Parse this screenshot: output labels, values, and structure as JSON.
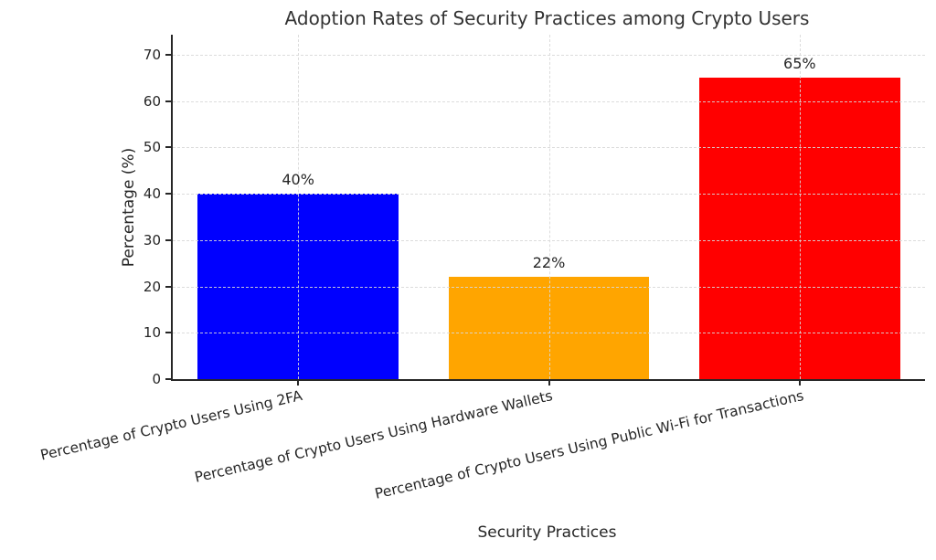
{
  "figure": {
    "background": "#ffffff"
  },
  "chart_data": {
    "type": "bar",
    "title": "Adoption Rates of Security Practices among Crypto Users",
    "xlabel": "Security Practices",
    "ylabel": "Percentage (%)",
    "categories": [
      "Percentage of Crypto Users Using 2FA",
      "Percentage of Crypto Users Using Hardware Wallets",
      "Percentage of Crypto Users Using Public Wi-Fi for Transactions"
    ],
    "values": [
      40,
      22,
      65
    ],
    "value_labels": [
      "40%",
      "22%",
      "65%"
    ],
    "bar_colors": [
      "#0000ff",
      "#ffa500",
      "#ff0000"
    ],
    "yticks": [
      0,
      10,
      20,
      30,
      40,
      50,
      60,
      70
    ],
    "ylim": [
      0,
      74.3
    ],
    "bar_width_fraction": 0.8,
    "xtick_rotation_deg": -13,
    "grid": "both-dashed",
    "grid_color": "#d9d9d9",
    "axis_color": "#262626",
    "text_color": "#262626",
    "legend_position": "none"
  }
}
